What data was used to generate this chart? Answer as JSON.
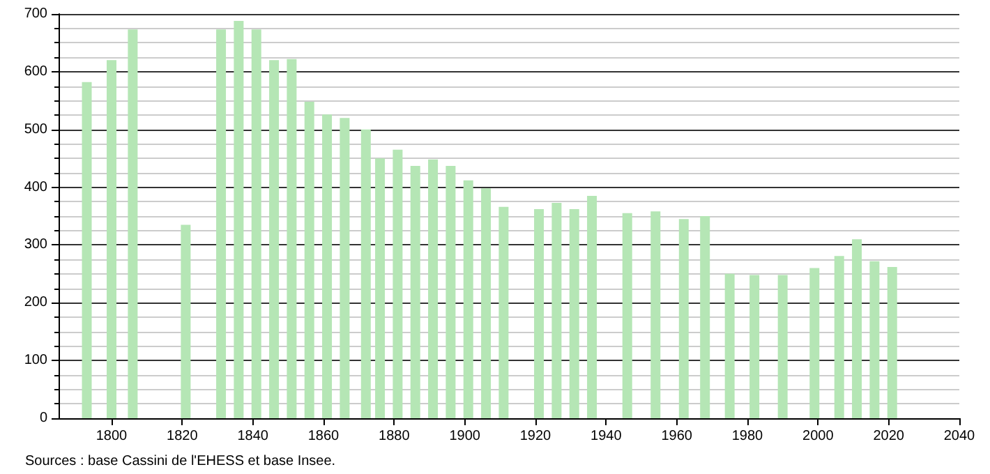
{
  "chart_data": {
    "type": "bar",
    "x": [
      1793,
      1800,
      1806,
      1821,
      1831,
      1836,
      1841,
      1846,
      1851,
      1856,
      1861,
      1866,
      1872,
      1876,
      1881,
      1886,
      1891,
      1896,
      1901,
      1906,
      1911,
      1921,
      1926,
      1931,
      1936,
      1946,
      1954,
      1962,
      1968,
      1975,
      1982,
      1990,
      1999,
      2006,
      2011,
      2016,
      2021
    ],
    "values": [
      582,
      620,
      673,
      335,
      673,
      688,
      673,
      620,
      622,
      548,
      526,
      520,
      500,
      450,
      465,
      437,
      448,
      437,
      412,
      398,
      366,
      362,
      373,
      362,
      385,
      355,
      358,
      345,
      350,
      250,
      248,
      248,
      260,
      281,
      310,
      272,
      262
    ],
    "color": "#b5e6b5",
    "xlim": [
      1785,
      2040
    ],
    "xticks": [
      1800,
      1820,
      1840,
      1860,
      1880,
      1900,
      1920,
      1940,
      1960,
      1980,
      2000,
      2020,
      2040
    ],
    "ylim": [
      0,
      700
    ],
    "yticks": [
      0,
      100,
      200,
      300,
      400,
      500,
      600,
      700
    ],
    "grid": "y",
    "annotations": [
      "Sources : base Cassini de l'EHESS et base Insee."
    ]
  }
}
